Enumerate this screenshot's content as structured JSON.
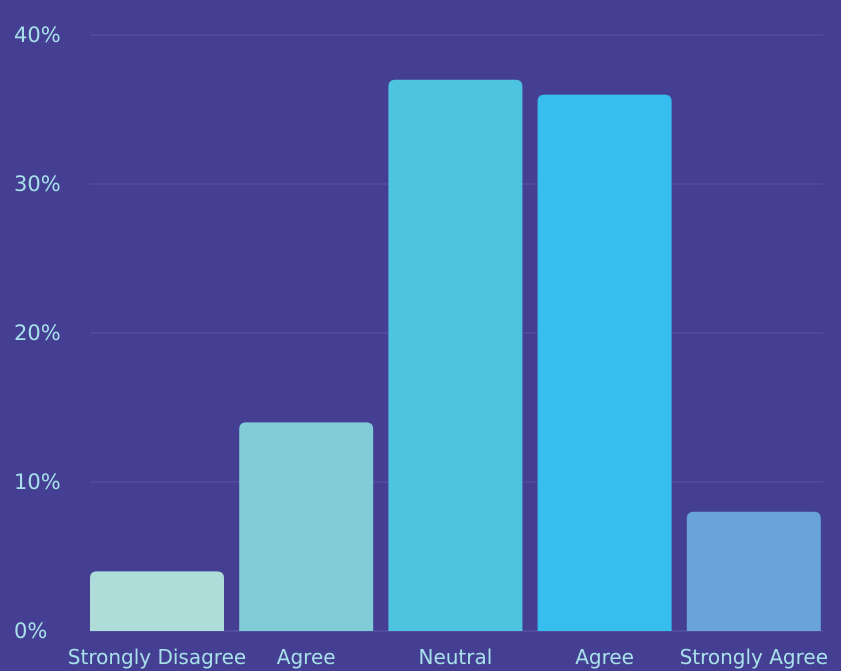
{
  "chart_data": {
    "type": "bar",
    "title": "",
    "xlabel": "",
    "ylabel": "",
    "categories": [
      "Strongly Disagree",
      "Agree",
      "Neutral",
      "Agree",
      "Strongly Agree"
    ],
    "values": [
      4,
      14,
      37,
      36,
      8
    ],
    "unit": "%",
    "ylim": [
      0,
      40
    ],
    "yticks": [
      0,
      10,
      20,
      30,
      40
    ],
    "ytick_labels": [
      "0%",
      "10%",
      "20%",
      "30%",
      "40%"
    ],
    "grid": true,
    "legend": "none",
    "colors": {
      "background": "#453f93",
      "bars": [
        "#aedcd9",
        "#80ccd7",
        "#4dc4e0",
        "#36bfee",
        "#68a4d8"
      ],
      "text": "#a8e0ea",
      "grid": "#5753a3"
    }
  }
}
